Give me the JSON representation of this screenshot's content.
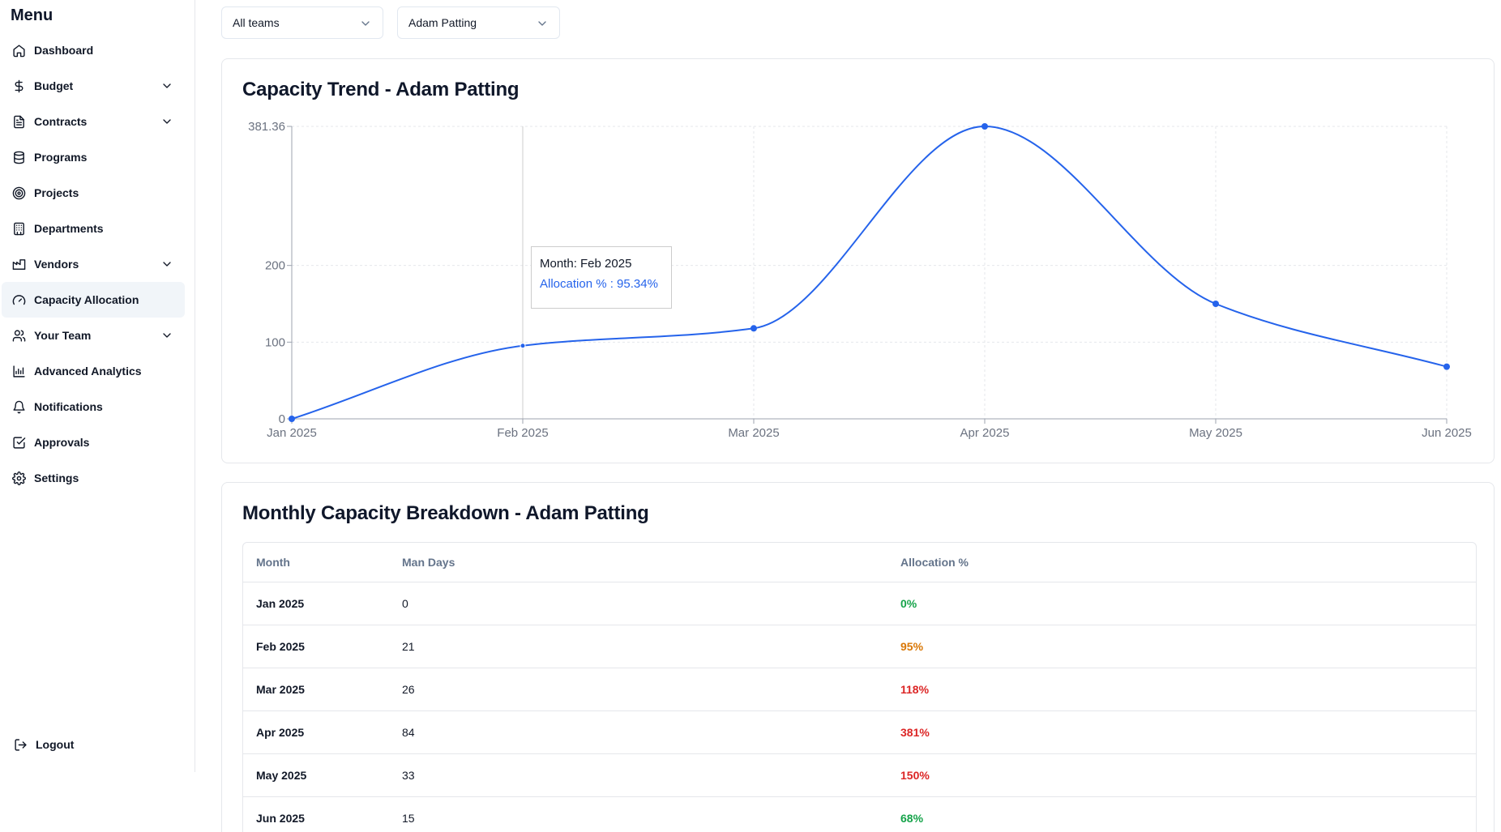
{
  "sidebar": {
    "title": "Menu",
    "items": [
      {
        "label": "Dashboard",
        "icon": "home-icon",
        "chevron": false,
        "active": false
      },
      {
        "label": "Budget",
        "icon": "dollar-icon",
        "chevron": true,
        "active": false
      },
      {
        "label": "Contracts",
        "icon": "document-icon",
        "chevron": true,
        "active": false
      },
      {
        "label": "Programs",
        "icon": "database-icon",
        "chevron": false,
        "active": false
      },
      {
        "label": "Projects",
        "icon": "target-icon",
        "chevron": false,
        "active": false
      },
      {
        "label": "Departments",
        "icon": "building-icon",
        "chevron": false,
        "active": false
      },
      {
        "label": "Vendors",
        "icon": "factory-icon",
        "chevron": true,
        "active": false
      },
      {
        "label": "Capacity Allocation",
        "icon": "gauge-icon",
        "chevron": false,
        "active": true
      },
      {
        "label": "Your Team",
        "icon": "users-icon",
        "chevron": true,
        "active": false
      },
      {
        "label": "Advanced Analytics",
        "icon": "chart-icon",
        "chevron": false,
        "active": false
      },
      {
        "label": "Notifications",
        "icon": "bell-icon",
        "chevron": false,
        "active": false
      },
      {
        "label": "Approvals",
        "icon": "check-square-icon",
        "chevron": false,
        "active": false
      },
      {
        "label": "Settings",
        "icon": "gear-icon",
        "chevron": false,
        "active": false
      }
    ],
    "logout_label": "Logout"
  },
  "filters": {
    "team": "All teams",
    "person": "Adam Patting"
  },
  "chart_card": {
    "title": "Capacity Trend - Adam Patting"
  },
  "tooltip": {
    "month_label": "Month: Feb 2025",
    "allocation_label": "Allocation % : 95.34%"
  },
  "chart_data": {
    "type": "line",
    "title": "Capacity Trend - Adam Patting",
    "x": [
      "Jan 2025",
      "Feb 2025",
      "Mar 2025",
      "Apr 2025",
      "May 2025",
      "Jun 2025"
    ],
    "series": [
      {
        "name": "Allocation %",
        "values": [
          0,
          95.34,
          118,
          381.36,
          150,
          68
        ],
        "color": "#2563eb"
      }
    ],
    "y_ticks": [
      0,
      100,
      200,
      381.36
    ],
    "y_tick_labels": [
      "0",
      "100",
      "200",
      "381.36"
    ],
    "ylim": [
      0,
      381.36
    ],
    "grid": true,
    "xlabel": "",
    "ylabel": ""
  },
  "table_card": {
    "title": "Monthly Capacity Breakdown - Adam Patting",
    "columns": [
      "Month",
      "Man Days",
      "Allocation %"
    ],
    "rows": [
      {
        "month": "Jan 2025",
        "man_days": "0",
        "allocation": "0%",
        "color": "#16a34a"
      },
      {
        "month": "Feb 2025",
        "man_days": "21",
        "allocation": "95%",
        "color": "#d97706"
      },
      {
        "month": "Mar 2025",
        "man_days": "26",
        "allocation": "118%",
        "color": "#dc2626"
      },
      {
        "month": "Apr 2025",
        "man_days": "84",
        "allocation": "381%",
        "color": "#dc2626"
      },
      {
        "month": "May 2025",
        "man_days": "33",
        "allocation": "150%",
        "color": "#dc2626"
      },
      {
        "month": "Jun 2025",
        "man_days": "15",
        "allocation": "68%",
        "color": "#16a34a"
      }
    ]
  }
}
